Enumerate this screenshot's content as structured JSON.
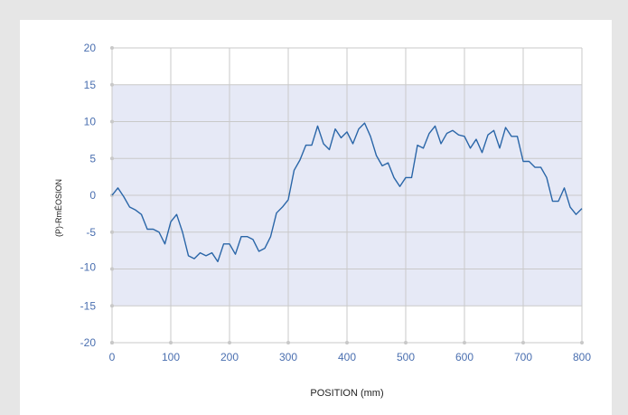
{
  "colors": {
    "page_background": "#e6e6e6",
    "plot_background": "#ffffff",
    "band_fill": "#e6e9f6",
    "grid": "#c9c9c9",
    "line": "#2a66a8",
    "tick_text": "#4a6fb0",
    "tick_dot": "#c8c8c8"
  },
  "chart_data": {
    "type": "line",
    "title": "",
    "xlabel": "POSITION (mm)",
    "ylabel": "(P)-RmÉOSION",
    "xlim": [
      0,
      800
    ],
    "ylim": [
      -20,
      20
    ],
    "x_ticks": [
      0,
      100,
      200,
      300,
      400,
      500,
      600,
      700,
      800
    ],
    "y_ticks": [
      20,
      15,
      10,
      5,
      0,
      -5,
      -10,
      -15,
      -20
    ],
    "y_tick_labels": [
      "20",
      "15",
      "10",
      "5",
      "0",
      "-5",
      "-10",
      "-15",
      "-20"
    ],
    "band": {
      "from": -15,
      "to": 15
    },
    "grid": true,
    "legend": "none",
    "series": [
      {
        "x": [
          0,
          10,
          20,
          30,
          40,
          50,
          60,
          70,
          80,
          90,
          100,
          110,
          120,
          130,
          140,
          150,
          160,
          170,
          180,
          190,
          200,
          210,
          220,
          230,
          240,
          250,
          260,
          270,
          280,
          290,
          300,
          310,
          320,
          330,
          340,
          350,
          360,
          370,
          380,
          390,
          400,
          410,
          420,
          430,
          440,
          450,
          460,
          470,
          480,
          490,
          500,
          510,
          520,
          530,
          540,
          550,
          560,
          570,
          580,
          590,
          600,
          610,
          620,
          630,
          640,
          650,
          660,
          670,
          680,
          690,
          700,
          710,
          720,
          730,
          740,
          750,
          760,
          770,
          780,
          790,
          800
        ],
        "values": [
          0,
          1.0,
          -0.2,
          -1.6,
          -2.0,
          -2.6,
          -4.6,
          -4.6,
          -5.0,
          -6.6,
          -3.6,
          -2.6,
          -5.0,
          -8.2,
          -8.6,
          -7.8,
          -8.2,
          -7.8,
          -9.0,
          -6.6,
          -6.6,
          -8.0,
          -5.6,
          -5.6,
          -6.0,
          -7.6,
          -7.2,
          -5.6,
          -2.4,
          -1.6,
          -0.6,
          3.4,
          4.8,
          6.8,
          6.8,
          9.4,
          7.0,
          6.2,
          9.0,
          7.8,
          8.6,
          7.0,
          9.0,
          9.8,
          8.0,
          5.4,
          4.0,
          4.4,
          2.4,
          1.2,
          2.4,
          2.4,
          6.8,
          6.4,
          8.4,
          9.4,
          7.0,
          8.4,
          8.8,
          8.2,
          8.0,
          6.4,
          7.6,
          5.8,
          8.2,
          8.8,
          6.4,
          9.2,
          8.0,
          8.0,
          4.6,
          4.6,
          3.8,
          3.8,
          2.4,
          -0.8,
          -0.8,
          1.0,
          -1.6,
          -2.6,
          -1.8
        ]
      }
    ]
  }
}
